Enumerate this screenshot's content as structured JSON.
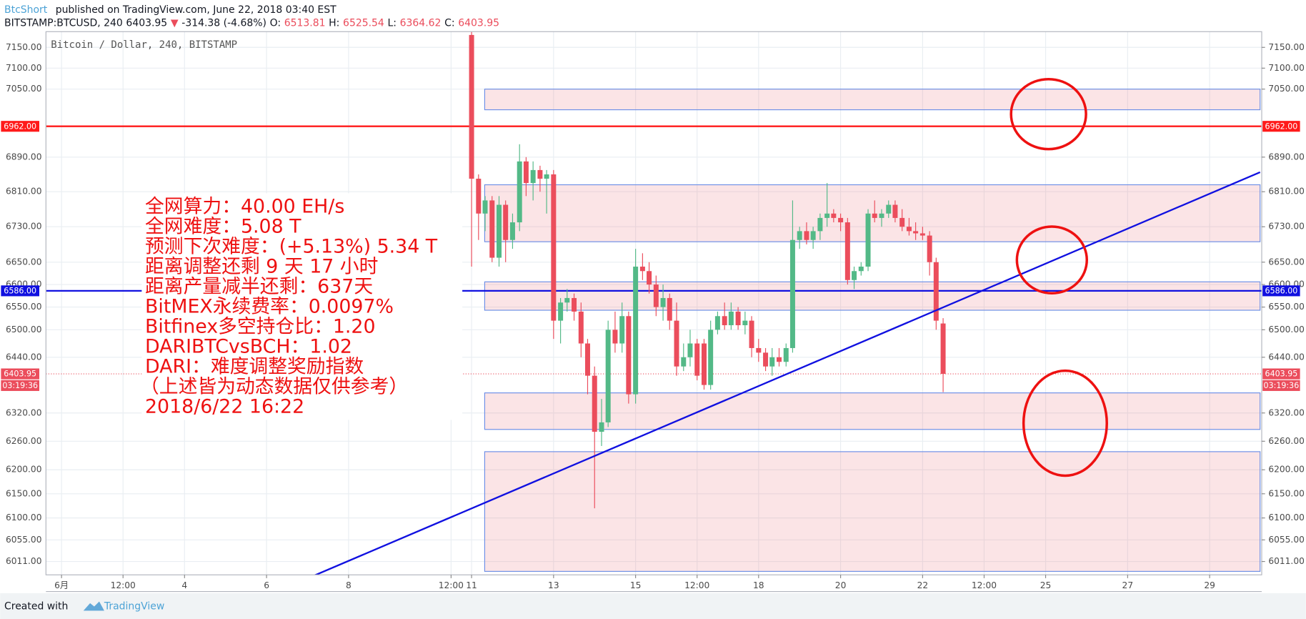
{
  "header": {
    "author": "BtcShort",
    "published": "published on TradingView.com, June 22, 2018 03:40 EST",
    "quote": [
      {
        "text": "BITSTAMP:BTCUSD, 240",
        "color": "#131722"
      },
      {
        "text": "6403.95",
        "color": "#131722"
      },
      {
        "text": "▼",
        "color": "#eb4d5c"
      },
      {
        "text": "-314.38 (-4.68%)",
        "color": "#131722"
      },
      {
        "text": "O:",
        "color": "#131722"
      },
      {
        "text": "6513.81",
        "color": "#eb4d5c"
      },
      {
        "text": "H:",
        "color": "#131722"
      },
      {
        "text": "6525.54",
        "color": "#eb4d5c"
      },
      {
        "text": "L:",
        "color": "#131722"
      },
      {
        "text": "6364.62",
        "color": "#eb4d5c"
      },
      {
        "text": "C:",
        "color": "#131722"
      },
      {
        "text": "6403.95",
        "color": "#eb4d5c"
      }
    ]
  },
  "footer": {
    "created": "Created with",
    "brand": "TradingView"
  },
  "chart_data": {
    "type": "candlestick",
    "title": "Bitcoin / Dollar, 240, BITSTAMP",
    "log_scale": true,
    "grid": true,
    "up_color": "#53b987",
    "down_color": "#eb4d5c",
    "xlim": [
      0.62,
      30.27
    ],
    "ylim": [
      5984,
      7188
    ],
    "xticks": [
      {
        "value": 1,
        "label": "6月"
      },
      {
        "value": 2.5,
        "label": "12:00"
      },
      4,
      6,
      8,
      {
        "value": 10.5,
        "label": "12:00"
      },
      11,
      13,
      15,
      {
        "value": 16.5,
        "label": "12:00"
      },
      18,
      20,
      22,
      {
        "value": 23.5,
        "label": "12:00"
      },
      25,
      27,
      29
    ],
    "yticks": [
      {
        "value": 7150,
        "label": "7150.00"
      },
      {
        "value": 7100,
        "label": "7100.00"
      },
      {
        "value": 7050,
        "label": "7050.00"
      },
      {
        "value": 6890,
        "label": "6890.00"
      },
      {
        "value": 6810,
        "label": "6810.00"
      },
      {
        "value": 6730,
        "label": "6730.00"
      },
      {
        "value": 6650,
        "label": "6650.00"
      },
      {
        "value": 6600,
        "label": "6600.00"
      },
      {
        "value": 6550,
        "label": "6550.00"
      },
      {
        "value": 6500,
        "label": "6500.00"
      },
      {
        "value": 6440,
        "label": "6440.00"
      },
      {
        "value": 6320,
        "label": "6320.00"
      },
      {
        "value": 6260,
        "label": "6260.00"
      },
      {
        "value": 6200,
        "label": "6200.00"
      },
      {
        "value": 6150,
        "label": "6150.00"
      },
      {
        "value": 6100,
        "label": "6100.00"
      },
      {
        "value": 6055,
        "label": "6055.00"
      },
      {
        "value": 6011,
        "label": "6011.00"
      }
    ],
    "x": [
      11,
      11.17,
      11.33,
      11.5,
      11.67,
      11.83,
      12,
      12.17,
      12.33,
      12.5,
      12.67,
      12.83,
      13,
      13.17,
      13.33,
      13.5,
      13.67,
      13.83,
      14,
      14.17,
      14.33,
      14.5,
      14.67,
      14.83,
      15,
      15.17,
      15.33,
      15.5,
      15.67,
      15.83,
      16,
      16.17,
      16.33,
      16.5,
      16.67,
      16.83,
      17,
      17.17,
      17.33,
      17.5,
      17.67,
      17.83,
      18,
      18.17,
      18.33,
      18.5,
      18.67,
      18.83,
      19,
      19.17,
      19.33,
      19.5,
      19.67,
      19.83,
      20,
      20.17,
      20.33,
      20.5,
      20.67,
      20.83,
      21,
      21.17,
      21.33,
      21.5,
      21.67,
      21.83,
      22,
      22.17,
      22.33,
      22.5
    ],
    "open": [
      7180,
      6840,
      6760,
      6790,
      6660,
      6780,
      6700,
      6740,
      6880,
      6830,
      6860,
      6840,
      6850,
      6520,
      6560,
      6570,
      6540,
      6470,
      6400,
      6280,
      6300,
      6500,
      6470,
      6530,
      6360,
      6640,
      6630,
      6600,
      6550,
      6570,
      6520,
      6420,
      6440,
      6470,
      6470,
      6380,
      6500,
      6530,
      6510,
      6540,
      6510,
      6520,
      6460,
      6450,
      6420,
      6440,
      6430,
      6460,
      6700,
      6720,
      6700,
      6720,
      6750,
      6760,
      6750,
      6740,
      6610,
      6630,
      6640,
      6760,
      6750,
      6760,
      6780,
      6750,
      6730,
      6720,
      6715,
      6710,
      6650,
      6513.81
    ],
    "high": [
      7188,
      6850,
      6800,
      6800,
      6800,
      6790,
      6760,
      6920,
      6890,
      6880,
      6870,
      6860,
      6860,
      6570,
      6590,
      6580,
      6560,
      6480,
      6420,
      6350,
      6520,
      6540,
      6560,
      6540,
      6680,
      6670,
      6650,
      6620,
      6600,
      6580,
      6560,
      6470,
      6500,
      6480,
      6480,
      6520,
      6540,
      6560,
      6560,
      6550,
      6540,
      6530,
      6480,
      6460,
      6460,
      6460,
      6470,
      6790,
      6730,
      6740,
      6730,
      6760,
      6830,
      6770,
      6760,
      6750,
      6640,
      6650,
      6770,
      6790,
      6770,
      6790,
      6790,
      6770,
      6750,
      6740,
      6730,
      6720,
      6660,
      6525.54
    ],
    "low": [
      6640,
      6700,
      6720,
      6650,
      6640,
      6650,
      6680,
      6720,
      6800,
      6790,
      6810,
      6760,
      6480,
      6470,
      6540,
      6520,
      6440,
      6360,
      6120,
      6250,
      6290,
      6450,
      6450,
      6340,
      6340,
      6610,
      6580,
      6530,
      6520,
      6500,
      6400,
      6410,
      6420,
      6390,
      6370,
      6370,
      6490,
      6500,
      6500,
      6500,
      6490,
      6440,
      6430,
      6410,
      6400,
      6420,
      6420,
      6450,
      6680,
      6690,
      6680,
      6700,
      6730,
      6740,
      6720,
      6600,
      6590,
      6620,
      6630,
      6740,
      6730,
      6750,
      6740,
      6720,
      6710,
      6700,
      6700,
      6620,
      6500,
      6364.62
    ],
    "close": [
      6840,
      6760,
      6790,
      6660,
      6780,
      6700,
      6740,
      6880,
      6830,
      6860,
      6840,
      6850,
      6520,
      6560,
      6570,
      6540,
      6470,
      6400,
      6280,
      6300,
      6500,
      6470,
      6530,
      6360,
      6640,
      6630,
      6600,
      6550,
      6570,
      6520,
      6420,
      6440,
      6470,
      6400,
      6380,
      6500,
      6530,
      6510,
      6540,
      6510,
      6520,
      6460,
      6450,
      6420,
      6440,
      6430,
      6460,
      6700,
      6720,
      6700,
      6720,
      6750,
      6760,
      6750,
      6740,
      6610,
      6630,
      6640,
      6760,
      6750,
      6760,
      6780,
      6750,
      6730,
      6720,
      6715,
      6710,
      6650,
      6520,
      6403.95
    ],
    "zones": [
      {
        "x0": 11.32,
        "x1": 30.23,
        "bottom": 7001,
        "top": 7050
      },
      {
        "x0": 11.32,
        "x1": 30.23,
        "bottom": 6696,
        "top": 6826
      },
      {
        "x0": 11.32,
        "x1": 30.23,
        "bottom": 6543,
        "top": 6606
      },
      {
        "x0": 11.32,
        "x1": 30.23,
        "bottom": 6285,
        "top": 6363
      },
      {
        "x0": 11.32,
        "x1": 30.23,
        "bottom": 5991,
        "top": 6238
      }
    ],
    "trendline": {
      "x": [
        7.06,
        30.23
      ],
      "y": [
        5979,
        6855
      ],
      "color": "#1010e0"
    },
    "levels": [
      {
        "value": 6962,
        "label": "6962.00",
        "color": "#ff1a1a",
        "style": "solid"
      },
      {
        "value": 6586,
        "label": "6586.00",
        "color": "#1010e0",
        "style": "solid"
      },
      {
        "value": 6403.95,
        "label": "6403.95",
        "color": "#eb4d5c",
        "style": "dotted"
      }
    ],
    "countdown": "03:19:36",
    "annotations": [
      "全网算力：40.00 EH/s",
      "全网难度：5.08 T",
      "预测下次难度：(+5.13%) 5.34 T",
      "距离调整还剩 9 天 17 小时",
      "距离产量减半还剩：637天",
      "BitMEX永续费率：0.0097%",
      "Bitfinex多空持仓比：1.20",
      "DARIBTCvsBCH：1.02",
      "DARI：难度调整奖励指数",
      "（上述皆为动态数据仅供参考）",
      "2018/6/22 16:22"
    ]
  }
}
